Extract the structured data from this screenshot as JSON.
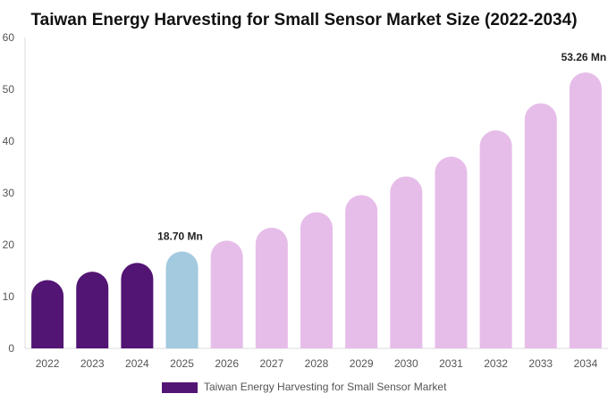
{
  "chart_data": {
    "type": "bar",
    "title": "Taiwan Energy Harvesting for Small Sensor Market Size (2022-2034)",
    "xlabel": "",
    "ylabel": "",
    "ylim": [
      0,
      60
    ],
    "yticks": [
      0,
      10,
      20,
      30,
      40,
      50,
      60
    ],
    "grid": false,
    "legend_position": "bottom",
    "categories": [
      "2022",
      "2023",
      "2024",
      "2025",
      "2026",
      "2027",
      "2028",
      "2029",
      "2030",
      "2031",
      "2032",
      "2033",
      "2034"
    ],
    "series": [
      {
        "name": "Taiwan Energy Harvesting for Small Sensor Market",
        "values": [
          13.2,
          14.8,
          16.5,
          18.7,
          20.8,
          23.3,
          26.3,
          29.6,
          33.2,
          37.0,
          42.1,
          47.3,
          53.26
        ]
      }
    ],
    "bar_groups": [
      "historical",
      "historical",
      "historical",
      "base",
      "forecast",
      "forecast",
      "forecast",
      "forecast",
      "forecast",
      "forecast",
      "forecast",
      "forecast",
      "forecast"
    ],
    "colors": {
      "historical": "#531574",
      "base": "#a3cadf",
      "forecast": "#e6bde9",
      "legend": "#531574"
    },
    "data_labels": [
      {
        "index": 3,
        "text": "18.70 Mn"
      },
      {
        "index": 12,
        "text": "53.26 Mn"
      }
    ]
  }
}
